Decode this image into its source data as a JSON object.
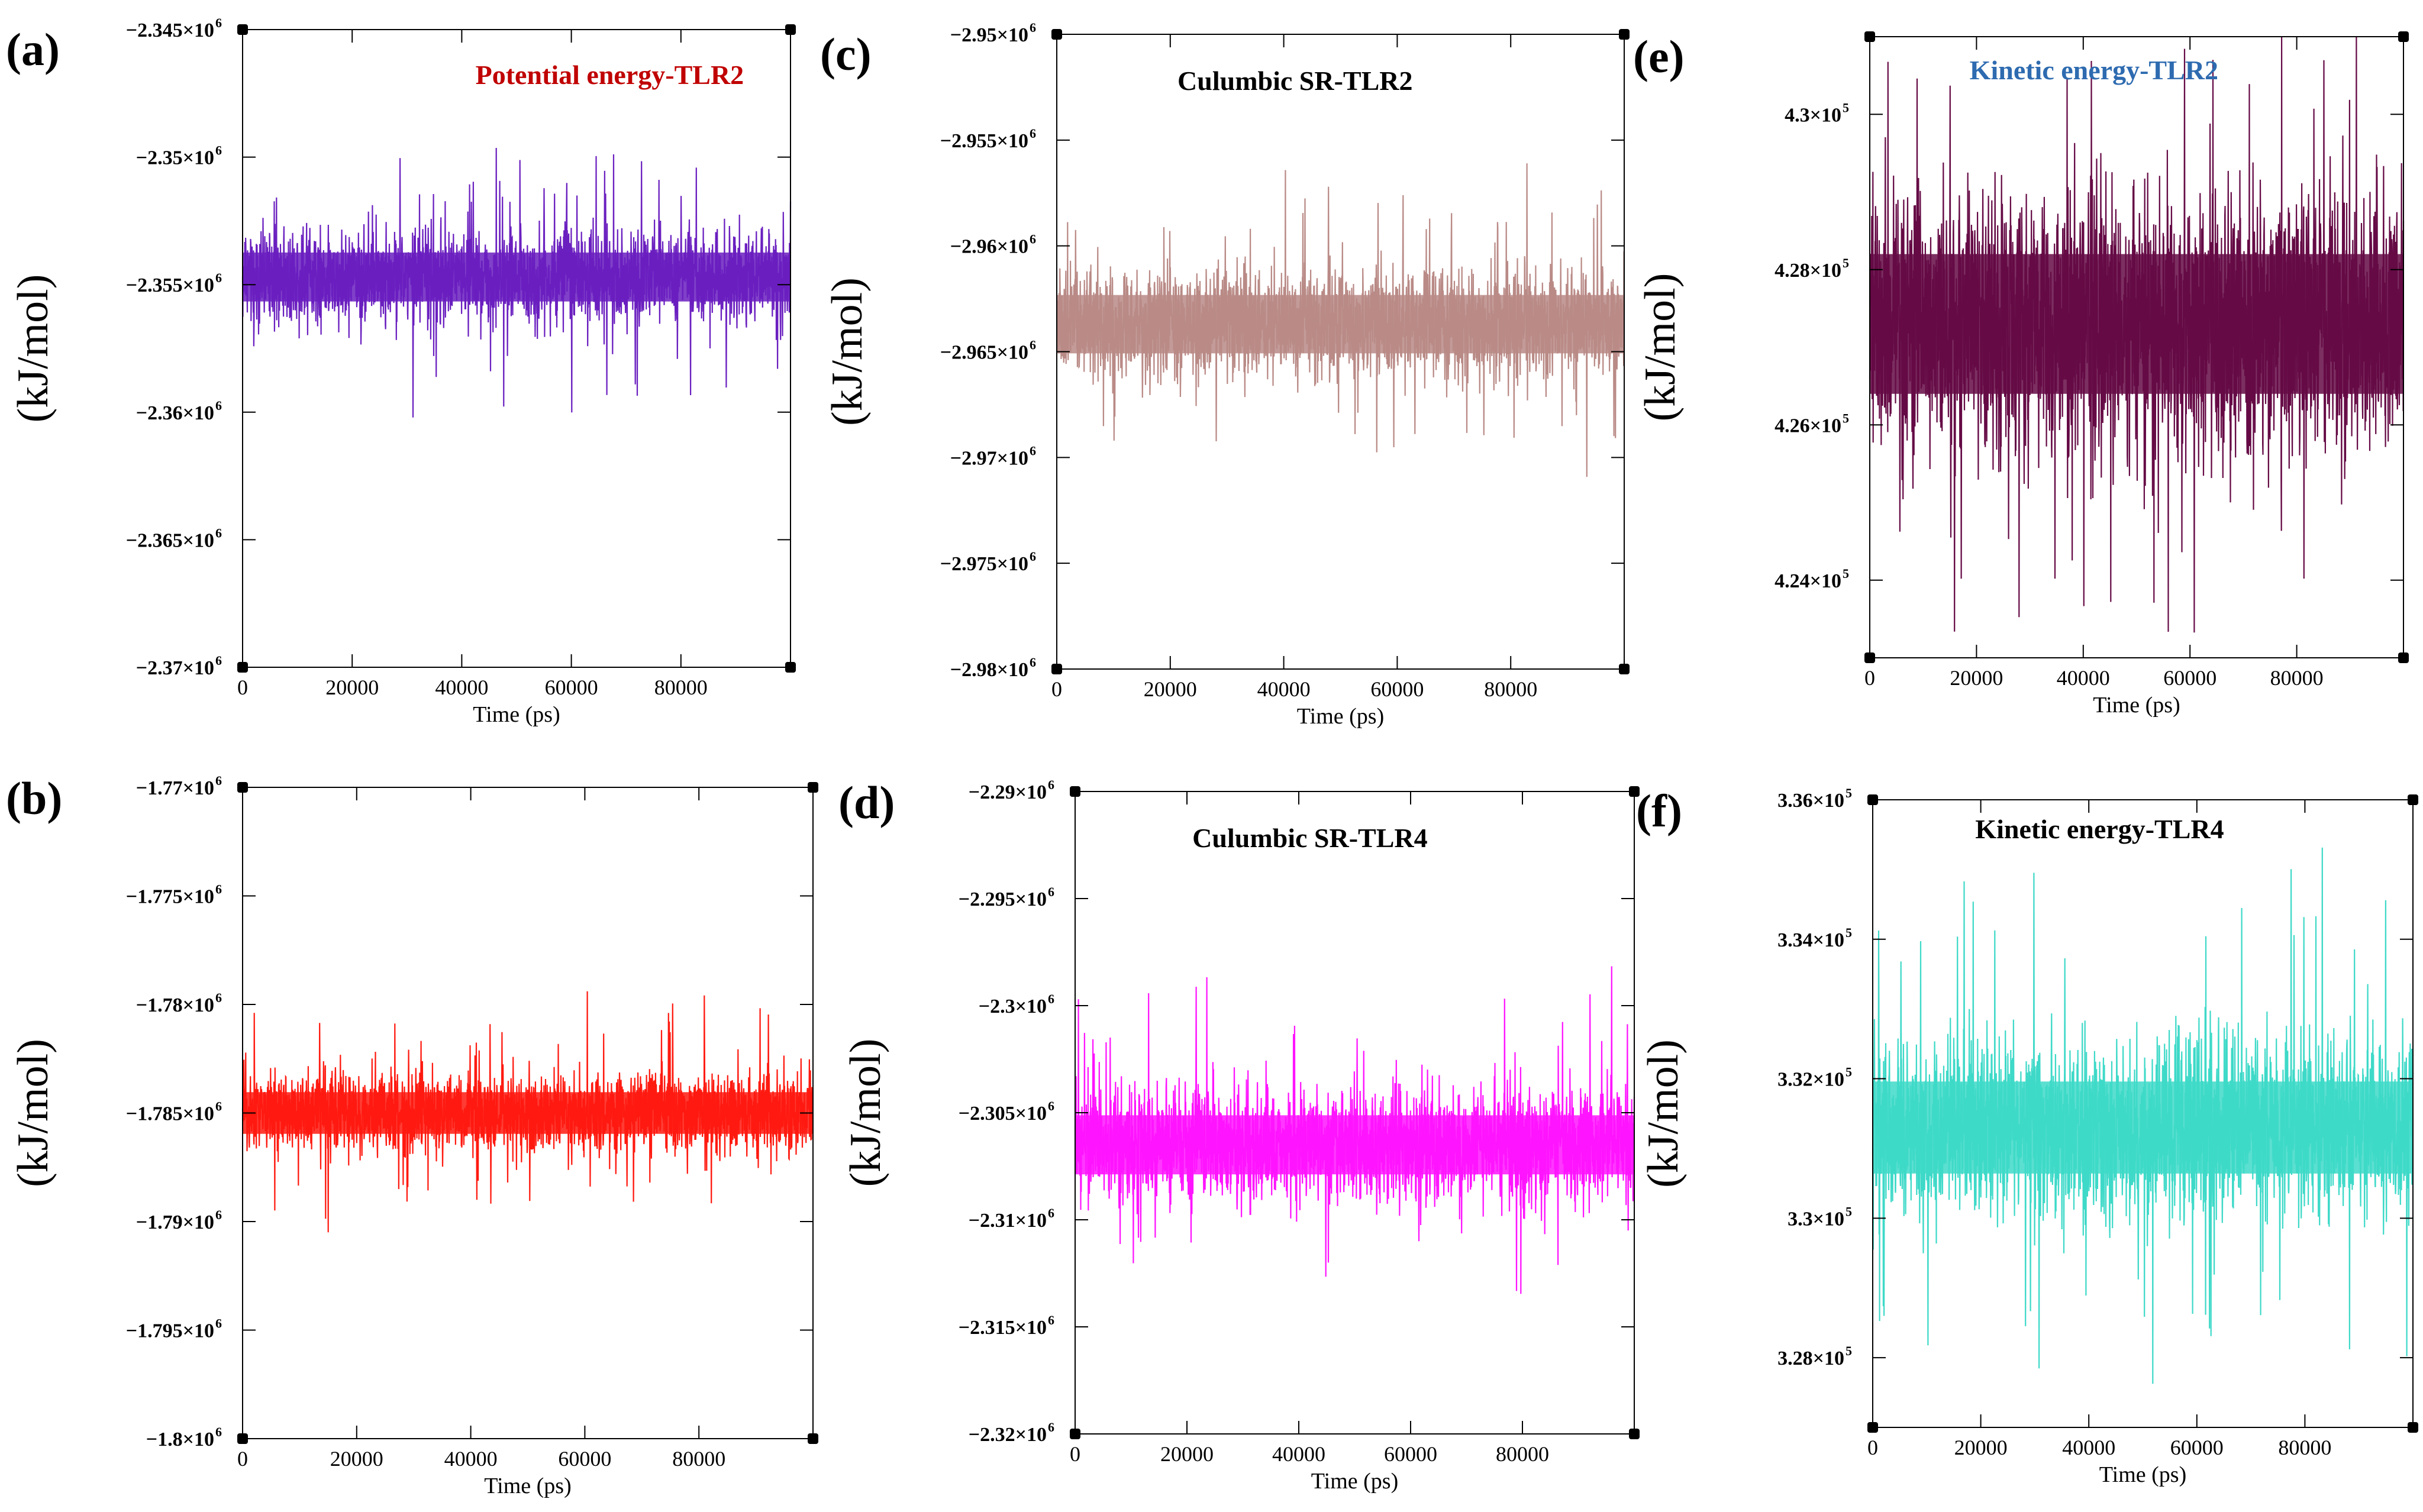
{
  "figure": {
    "background": "#ffffff"
  },
  "chart_data": [
    {
      "panel": "(a)",
      "type": "line",
      "title": "Potential energy-TLR2",
      "title_color": "#c00000",
      "xlabel": "Time (ps)",
      "ylabel": "(kJ/mol)",
      "series_color": "#6a1fbf",
      "mean": -2354700,
      "noise": 1600,
      "spikes": 3500,
      "xlim": [
        0,
        100000
      ],
      "ylim": [
        -2370000,
        -2345000
      ],
      "xticks": [
        0,
        20000,
        40000,
        60000,
        80000
      ],
      "xtick_labels": [
        "0",
        "20000",
        "40000",
        "60000",
        "80000"
      ],
      "yticks": [
        -2370000,
        -2365000,
        -2360000,
        -2355000,
        -2350000,
        -2345000
      ],
      "ytick_mant": [
        "−2.37×10",
        "−2.365×10",
        "−2.36×10",
        "−2.355×10",
        "−2.35×10",
        "−2.345×10"
      ],
      "ytick_exp": [
        "6",
        "6",
        "6",
        "6",
        "6",
        "6"
      ]
    },
    {
      "panel": "(b)",
      "type": "line",
      "title": "",
      "title_color": "#000000",
      "xlabel": "Time (ps)",
      "ylabel": "(kJ/mol)",
      "series_color": "#ff1a10",
      "mean": -1785000,
      "noise": 1600,
      "spikes": 3500,
      "xlim": [
        0,
        100000
      ],
      "ylim": [
        -1800000,
        -1770000
      ],
      "xticks": [
        0,
        20000,
        40000,
        60000,
        80000
      ],
      "xtick_labels": [
        "0",
        "20000",
        "40000",
        "60000",
        "80000"
      ],
      "yticks": [
        -1800000,
        -1795000,
        -1790000,
        -1785000,
        -1780000,
        -1775000,
        -1770000
      ],
      "ytick_mant": [
        "−1.8×10",
        "−1.795×10",
        "−1.79×10",
        "−1.785×10",
        "−1.78×10",
        "−1.775×10",
        "−1.77×10"
      ],
      "ytick_exp": [
        "6",
        "6",
        "6",
        "6",
        "6",
        "6",
        "6"
      ]
    },
    {
      "panel": "(c)",
      "type": "line",
      "title": "Culumbic SR-TLR2",
      "title_color": "#000000",
      "xlabel": "Time (ps)",
      "ylabel": "(kJ/mol)",
      "series_color": "#b98a86",
      "mean": -2963700,
      "noise": 2300,
      "spikes": 5000,
      "xlim": [
        0,
        100000
      ],
      "ylim": [
        -2980000,
        -2950000
      ],
      "xticks": [
        0,
        20000,
        40000,
        60000,
        80000
      ],
      "xtick_labels": [
        "0",
        "20000",
        "40000",
        "60000",
        "80000"
      ],
      "yticks": [
        -2980000,
        -2975000,
        -2970000,
        -2965000,
        -2960000,
        -2955000,
        -2950000
      ],
      "ytick_mant": [
        "−2.98×10",
        "−2.975×10",
        "−2.97×10",
        "−2.965×10",
        "−2.96×10",
        "−2.955×10",
        "−2.95×10"
      ],
      "ytick_exp": [
        "6",
        "6",
        "6",
        "6",
        "6",
        "6",
        "6"
      ]
    },
    {
      "panel": "(d)",
      "type": "line",
      "title": "Culumbic SR-TLR4",
      "title_color": "#000000",
      "xlabel": "Time (ps)",
      "ylabel": "(kJ/mol)",
      "series_color": "#ff14ff",
      "mean": -2306500,
      "noise": 2300,
      "spikes": 5000,
      "xlim": [
        0,
        100000
      ],
      "ylim": [
        -2320000,
        -2290000
      ],
      "xticks": [
        0,
        20000,
        40000,
        60000,
        80000
      ],
      "xtick_labels": [
        "0",
        "20000",
        "40000",
        "60000",
        "80000"
      ],
      "yticks": [
        -2320000,
        -2315000,
        -2310000,
        -2305000,
        -2300000,
        -2295000,
        -2290000
      ],
      "ytick_mant": [
        "−2.32×10",
        "−2.315×10",
        "−2.31×10",
        "−2.305×10",
        "−2.3×10",
        "−2.295×10",
        "−2.29×10"
      ],
      "ytick_exp": [
        "6",
        "6",
        "6",
        "6",
        "6",
        "6",
        "6"
      ]
    },
    {
      "panel": "(e)",
      "type": "line",
      "title": "Kinetic energy-TLR2",
      "title_color": "#2e6bb0",
      "xlabel": "Time (ps)",
      "ylabel": "(kJ/mol)",
      "series_color": "#650a45",
      "mean": 427300,
      "noise": 1500,
      "spikes": 2800,
      "xlim": [
        0,
        100000
      ],
      "ylim": [
        423000,
        431000
      ],
      "xticks": [
        0,
        20000,
        40000,
        60000,
        80000
      ],
      "xtick_labels": [
        "0",
        "20000",
        "40000",
        "60000",
        "80000"
      ],
      "yticks": [
        424000,
        426000,
        428000,
        430000
      ],
      "ytick_mant": [
        "4.24×10",
        "4.26×10",
        "4.28×10",
        "4.3×10"
      ],
      "ytick_exp": [
        "5",
        "5",
        "5",
        "5"
      ]
    },
    {
      "panel": "(f)",
      "type": "line",
      "title": "Kinetic energy-TLR4",
      "title_color": "#000000",
      "xlabel": "Time (ps)",
      "ylabel": "(kJ/mol)",
      "series_color": "#3ed9c8",
      "mean": 331300,
      "noise": 1100,
      "spikes": 2800,
      "xlim": [
        0,
        100000
      ],
      "ylim": [
        327000,
        336000
      ],
      "xticks": [
        0,
        20000,
        40000,
        60000,
        80000
      ],
      "xtick_labels": [
        "0",
        "20000",
        "40000",
        "60000",
        "80000"
      ],
      "yticks": [
        328000,
        330000,
        332000,
        334000,
        336000
      ],
      "ytick_mant": [
        "3.28×10",
        "3.3×10",
        "3.32×10",
        "3.34×10",
        "3.36×10"
      ],
      "ytick_exp": [
        "5",
        "5",
        "5",
        "5",
        "5"
      ]
    }
  ]
}
